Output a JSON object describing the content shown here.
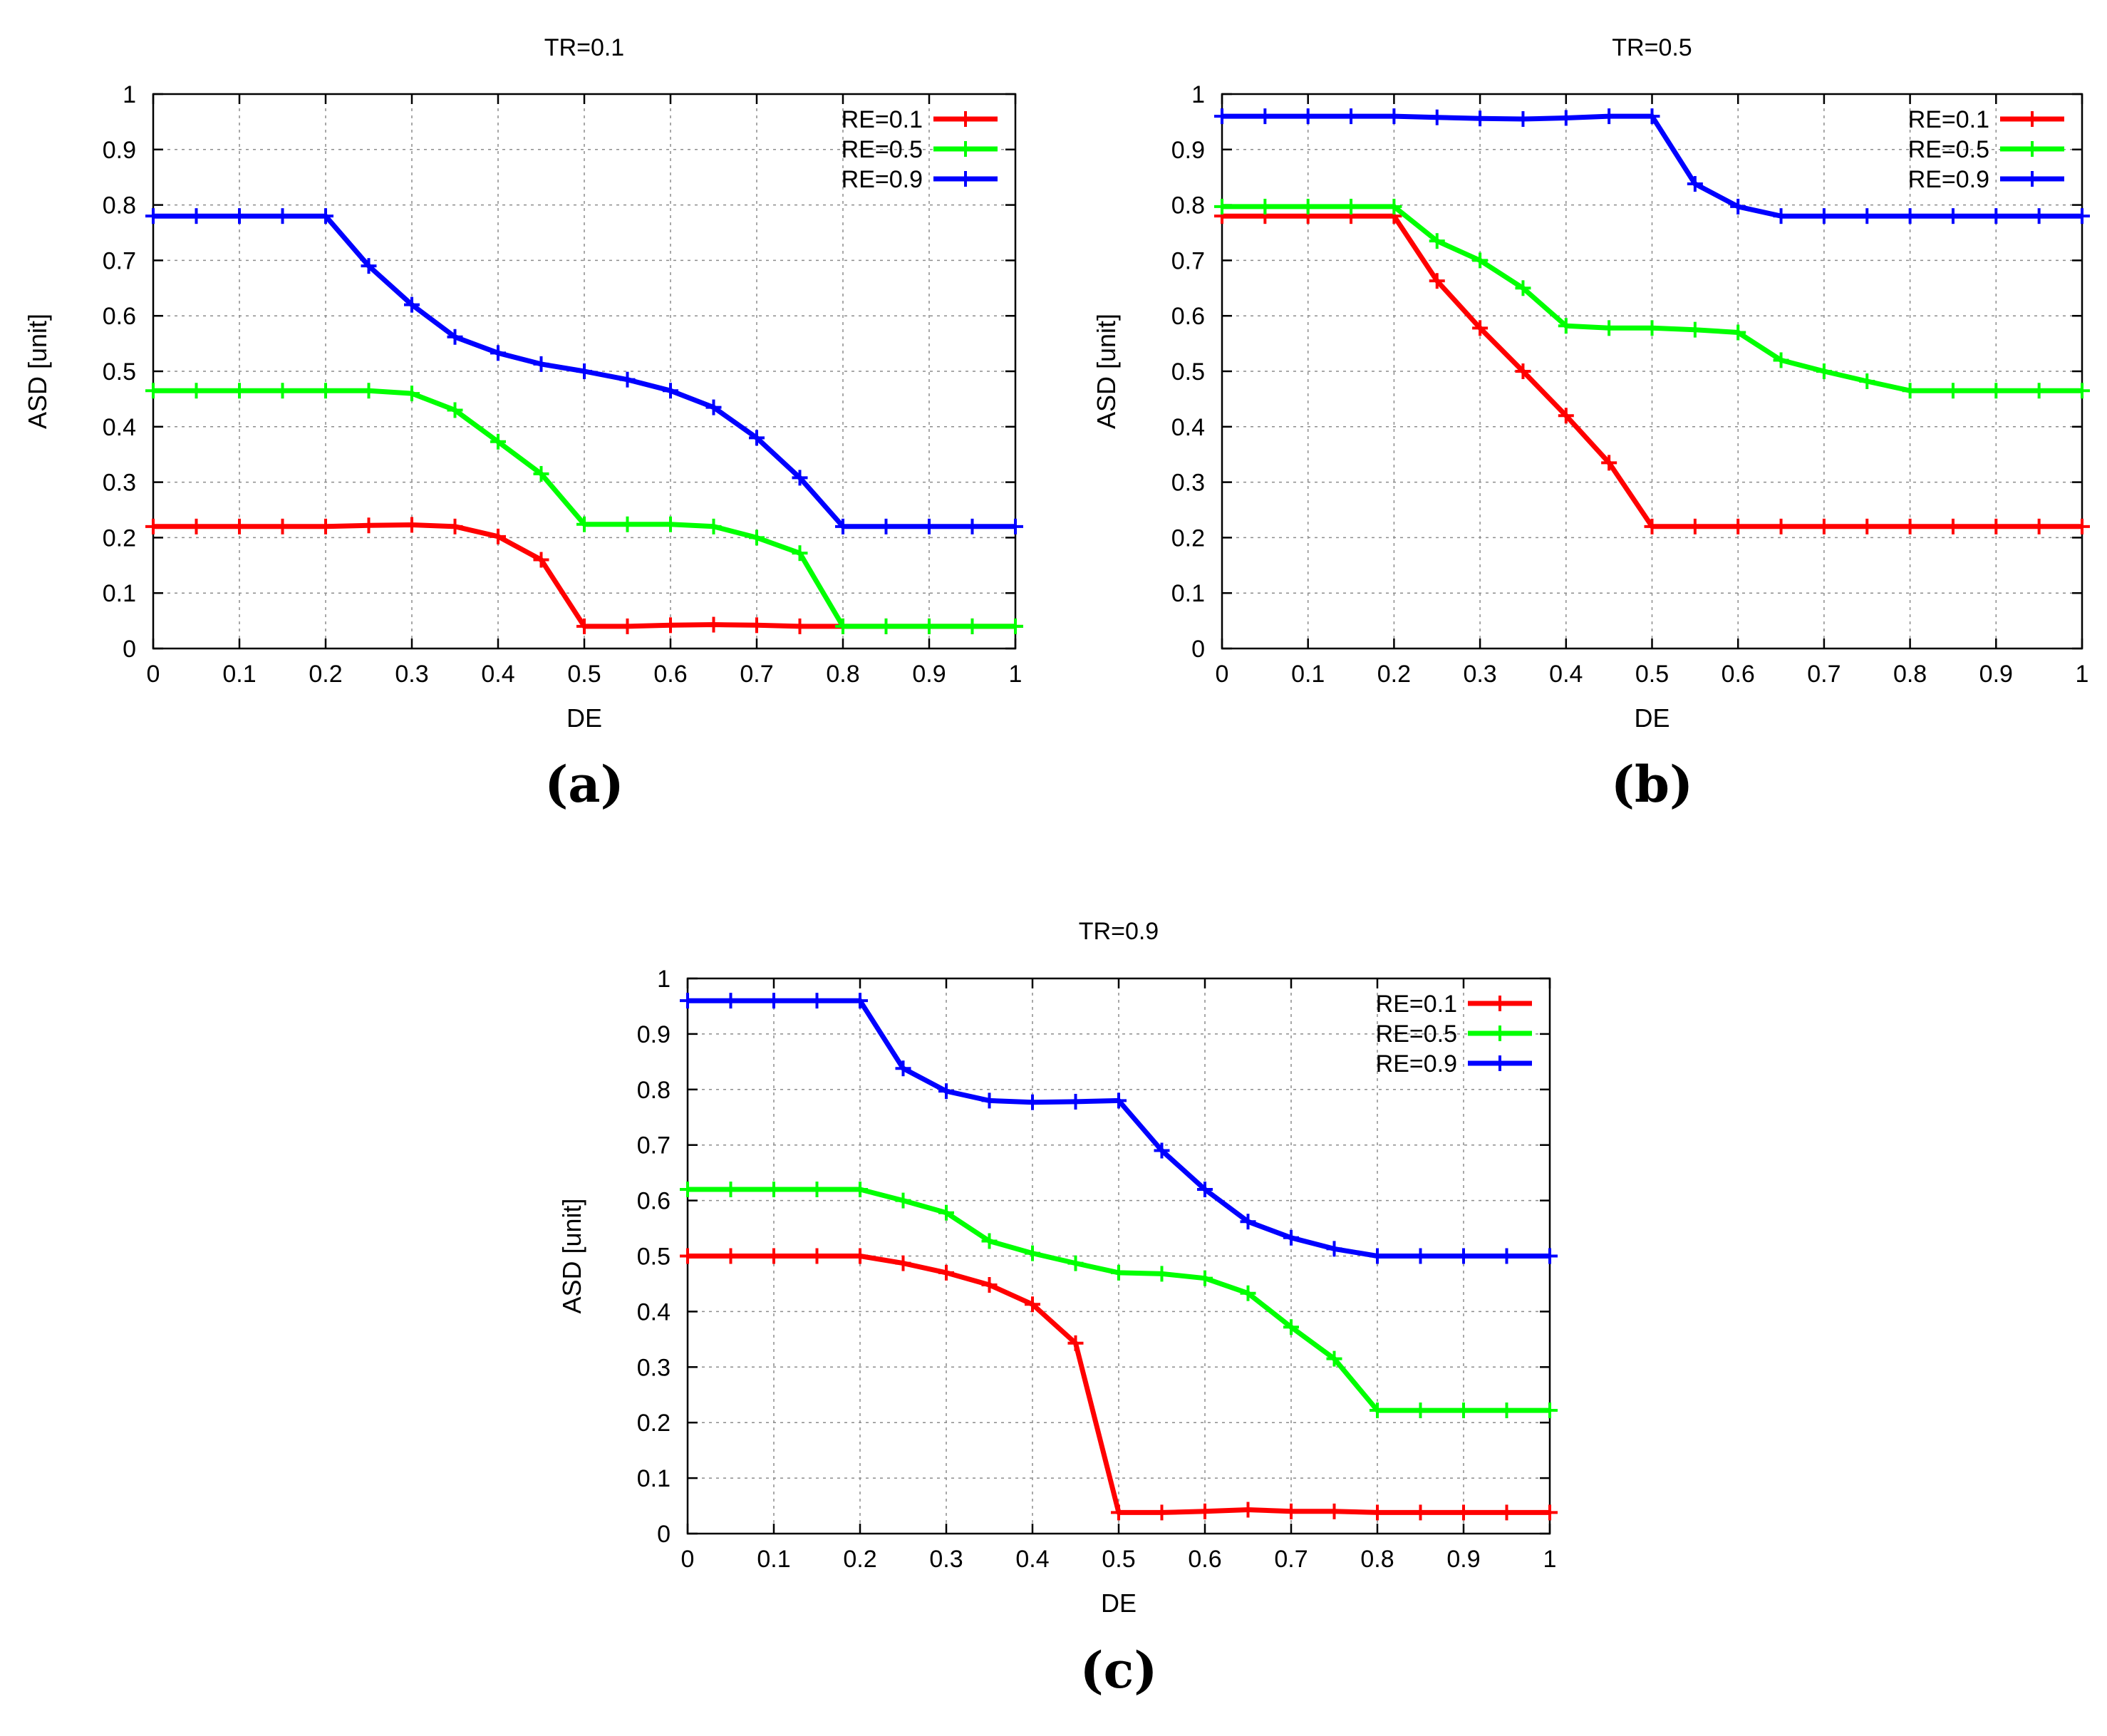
{
  "chart_data": [
    {
      "type": "line",
      "panel": "a",
      "caption": "(a)",
      "title": "TR=0.1",
      "xlabel": "DE",
      "ylabel": "ASD [unit]",
      "xlim": [
        0,
        1
      ],
      "ylim": [
        0,
        1
      ],
      "xticks": [
        "0",
        "0.1",
        "0.2",
        "0.3",
        "0.4",
        "0.5",
        "0.6",
        "0.7",
        "0.8",
        "0.9",
        "1"
      ],
      "yticks": [
        "0",
        "0.1",
        "0.2",
        "0.3",
        "0.4",
        "0.5",
        "0.6",
        "0.7",
        "0.8",
        "0.9",
        "1"
      ],
      "grid": true,
      "legend_position": "top-right",
      "x": [
        0,
        0.05,
        0.1,
        0.15,
        0.2,
        0.25,
        0.3,
        0.35,
        0.4,
        0.45,
        0.5,
        0.55,
        0.6,
        0.65,
        0.7,
        0.75,
        0.8,
        0.85,
        0.9,
        0.95,
        1.0
      ],
      "series": [
        {
          "name": "RE=0.1",
          "color": "#ff0000",
          "values": [
            0.22,
            0.22,
            0.22,
            0.22,
            0.22,
            0.222,
            0.223,
            0.22,
            0.202,
            0.16,
            0.04,
            0.04,
            0.042,
            0.043,
            0.042,
            0.04,
            0.04,
            0.04,
            0.04,
            0.04,
            0.04
          ]
        },
        {
          "name": "RE=0.5",
          "color": "#00ff00",
          "values": [
            0.465,
            0.465,
            0.465,
            0.465,
            0.465,
            0.465,
            0.46,
            0.43,
            0.373,
            0.315,
            0.224,
            0.224,
            0.224,
            0.22,
            0.2,
            0.172,
            0.04,
            0.04,
            0.04,
            0.04,
            0.04
          ]
        },
        {
          "name": "RE=0.9",
          "color": "#0000ff",
          "values": [
            0.78,
            0.78,
            0.78,
            0.78,
            0.78,
            0.69,
            0.62,
            0.562,
            0.533,
            0.513,
            0.5,
            0.485,
            0.465,
            0.435,
            0.38,
            0.308,
            0.22,
            0.22,
            0.22,
            0.22,
            0.22
          ]
        }
      ]
    },
    {
      "type": "line",
      "panel": "b",
      "caption": "(b)",
      "title": "TR=0.5",
      "xlabel": "DE",
      "ylabel": "ASD [unit]",
      "xlim": [
        0,
        1
      ],
      "ylim": [
        0,
        1
      ],
      "xticks": [
        "0",
        "0.1",
        "0.2",
        "0.3",
        "0.4",
        "0.5",
        "0.6",
        "0.7",
        "0.8",
        "0.9",
        "1"
      ],
      "yticks": [
        "0",
        "0.1",
        "0.2",
        "0.3",
        "0.4",
        "0.5",
        "0.6",
        "0.7",
        "0.8",
        "0.9",
        "1"
      ],
      "grid": true,
      "legend_position": "top-right",
      "x": [
        0,
        0.05,
        0.1,
        0.15,
        0.2,
        0.25,
        0.3,
        0.35,
        0.4,
        0.45,
        0.5,
        0.55,
        0.6,
        0.65,
        0.7,
        0.75,
        0.8,
        0.85,
        0.9,
        0.95,
        1.0
      ],
      "series": [
        {
          "name": "RE=0.1",
          "color": "#ff0000",
          "values": [
            0.78,
            0.78,
            0.78,
            0.78,
            0.78,
            0.663,
            0.578,
            0.5,
            0.42,
            0.335,
            0.22,
            0.22,
            0.22,
            0.22,
            0.22,
            0.22,
            0.22,
            0.22,
            0.22,
            0.22,
            0.22
          ]
        },
        {
          "name": "RE=0.5",
          "color": "#00ff00",
          "values": [
            0.797,
            0.797,
            0.797,
            0.797,
            0.797,
            0.735,
            0.7,
            0.65,
            0.582,
            0.578,
            0.578,
            0.575,
            0.57,
            0.52,
            0.5,
            0.482,
            0.465,
            0.465,
            0.465,
            0.465,
            0.465
          ]
        },
        {
          "name": "RE=0.9",
          "color": "#0000ff",
          "values": [
            0.96,
            0.96,
            0.96,
            0.96,
            0.96,
            0.958,
            0.956,
            0.955,
            0.957,
            0.96,
            0.96,
            0.838,
            0.797,
            0.78,
            0.78,
            0.78,
            0.78,
            0.78,
            0.78,
            0.78,
            0.78
          ]
        }
      ]
    },
    {
      "type": "line",
      "panel": "c",
      "caption": "(c)",
      "title": "TR=0.9",
      "xlabel": "DE",
      "ylabel": "ASD [unit]",
      "xlim": [
        0,
        1
      ],
      "ylim": [
        0,
        1
      ],
      "xticks": [
        "0",
        "0.1",
        "0.2",
        "0.3",
        "0.4",
        "0.5",
        "0.6",
        "0.7",
        "0.8",
        "0.9",
        "1"
      ],
      "yticks": [
        "0",
        "0.1",
        "0.2",
        "0.3",
        "0.4",
        "0.5",
        "0.6",
        "0.7",
        "0.8",
        "0.9",
        "1"
      ],
      "grid": true,
      "legend_position": "top-right",
      "x": [
        0,
        0.05,
        0.1,
        0.15,
        0.2,
        0.25,
        0.3,
        0.35,
        0.4,
        0.45,
        0.5,
        0.55,
        0.6,
        0.65,
        0.7,
        0.75,
        0.8,
        0.85,
        0.9,
        0.95,
        1.0
      ],
      "series": [
        {
          "name": "RE=0.1",
          "color": "#ff0000",
          "values": [
            0.5,
            0.5,
            0.5,
            0.5,
            0.5,
            0.487,
            0.47,
            0.448,
            0.413,
            0.343,
            0.038,
            0.038,
            0.04,
            0.043,
            0.04,
            0.04,
            0.038,
            0.038,
            0.038,
            0.038,
            0.038
          ]
        },
        {
          "name": "RE=0.5",
          "color": "#00ff00",
          "values": [
            0.62,
            0.62,
            0.62,
            0.62,
            0.62,
            0.6,
            0.578,
            0.527,
            0.505,
            0.487,
            0.47,
            0.468,
            0.46,
            0.433,
            0.372,
            0.315,
            0.222,
            0.222,
            0.222,
            0.222,
            0.222
          ]
        },
        {
          "name": "RE=0.9",
          "color": "#0000ff",
          "values": [
            0.96,
            0.96,
            0.96,
            0.96,
            0.96,
            0.838,
            0.797,
            0.78,
            0.777,
            0.778,
            0.78,
            0.69,
            0.62,
            0.562,
            0.533,
            0.513,
            0.5,
            0.5,
            0.5,
            0.5,
            0.5
          ]
        }
      ]
    }
  ]
}
